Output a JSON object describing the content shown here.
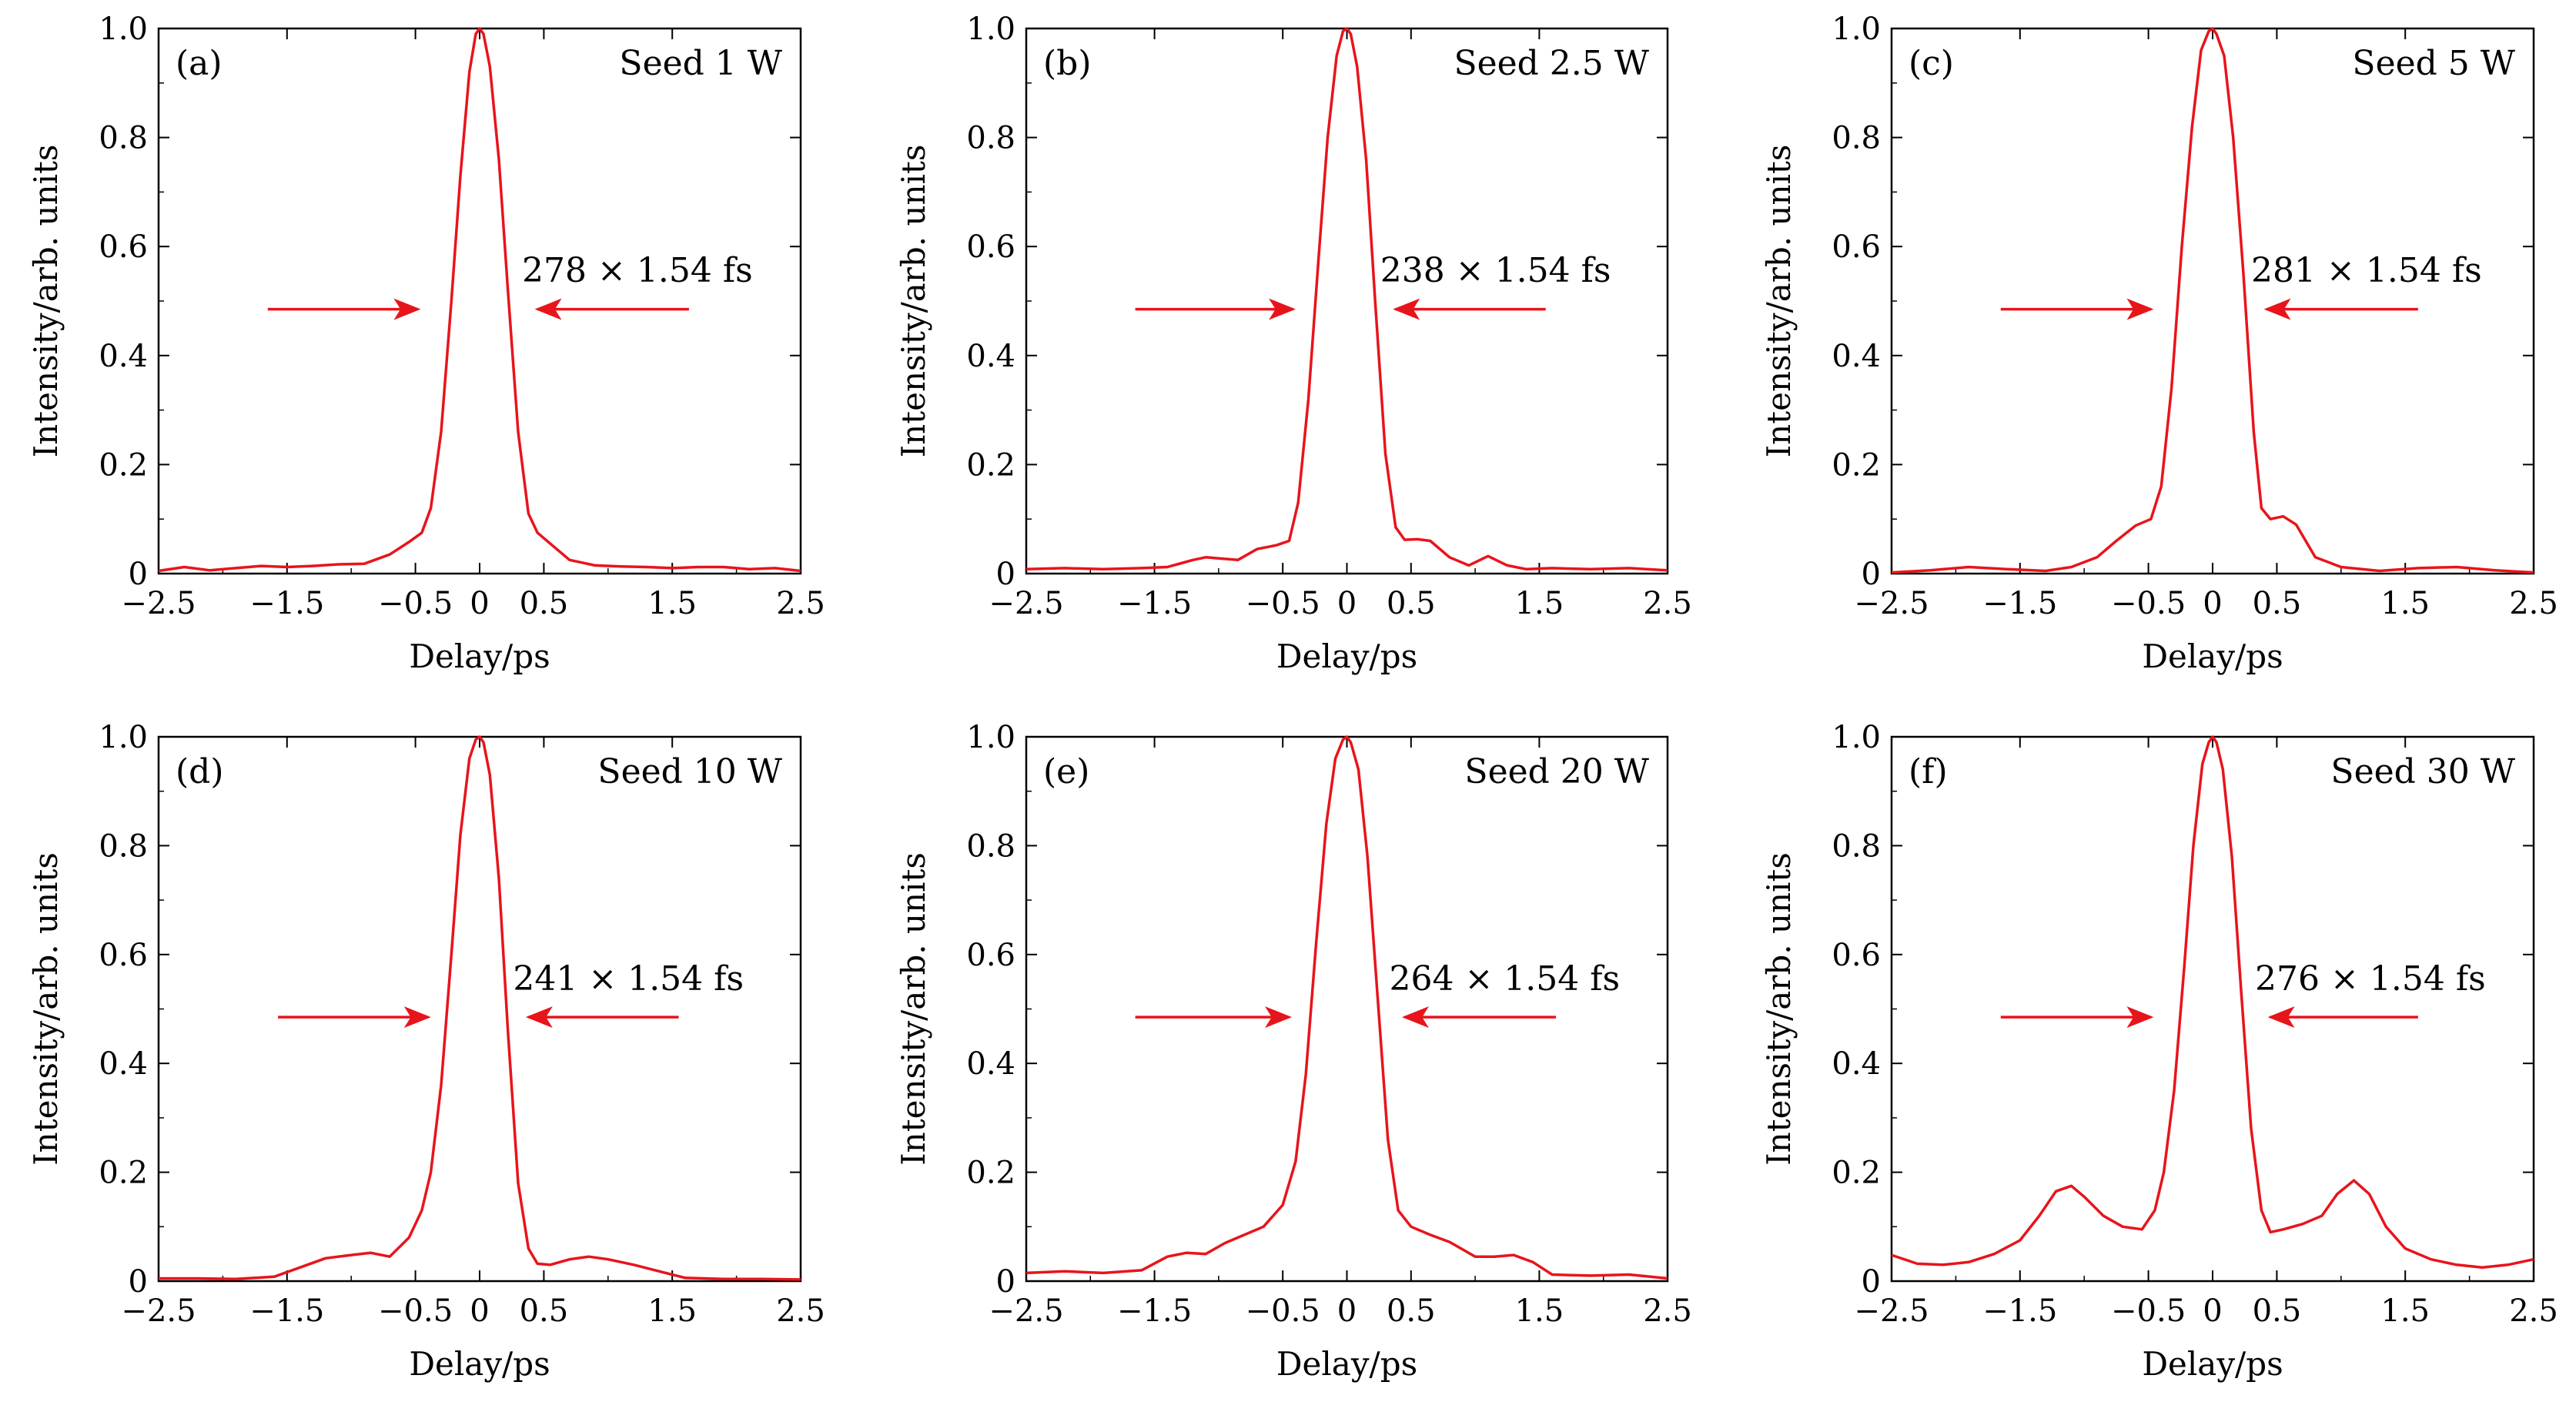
{
  "figure": {
    "background": "#ffffff",
    "curve_color": "#e8141b",
    "arrow_color": "#e8141b",
    "axis_color": "#000000"
  },
  "chart_data": [
    {
      "type": "line",
      "panel": "(a)",
      "legend": "Seed 1 W",
      "annotation": "278 × 1.54 fs",
      "xlabel": "Delay/ps",
      "ylabel": "Intensity/arb. units",
      "xlim": [
        -2.5,
        2.5
      ],
      "ylim": [
        0,
        1.0
      ],
      "xticks": [
        -2.5,
        -1.5,
        -0.5,
        0,
        0.5,
        1.5,
        2.5
      ],
      "xtick_labels": [
        "−2.5",
        "−1.5",
        "−0.5",
        "0",
        "0.5",
        "1.5",
        "2.5"
      ],
      "yticks": [
        0,
        0.2,
        0.4,
        0.6,
        0.8,
        1.0
      ],
      "ytick_labels": [
        "0",
        "0.2",
        "0.4",
        "0.6",
        "0.8",
        "1.0"
      ],
      "arrows": [
        {
          "from": -1.65,
          "to": -0.48,
          "y": 0.485
        },
        {
          "from": 1.63,
          "to": 0.45,
          "y": 0.485
        }
      ],
      "x": [
        -2.5,
        -2.3,
        -2.1,
        -1.9,
        -1.7,
        -1.5,
        -1.3,
        -1.1,
        -0.9,
        -0.7,
        -0.55,
        -0.45,
        -0.38,
        -0.3,
        -0.22,
        -0.15,
        -0.08,
        -0.03,
        0,
        0.03,
        0.08,
        0.15,
        0.22,
        0.3,
        0.38,
        0.45,
        0.55,
        0.7,
        0.9,
        1.1,
        1.3,
        1.5,
        1.7,
        1.9,
        2.1,
        2.3,
        2.5
      ],
      "values": [
        0.005,
        0.012,
        0.006,
        0.01,
        0.014,
        0.012,
        0.014,
        0.017,
        0.018,
        0.035,
        0.058,
        0.075,
        0.12,
        0.26,
        0.5,
        0.73,
        0.92,
        0.99,
        1.0,
        0.99,
        0.93,
        0.76,
        0.52,
        0.26,
        0.11,
        0.075,
        0.055,
        0.025,
        0.015,
        0.013,
        0.012,
        0.01,
        0.012,
        0.012,
        0.008,
        0.01,
        0.005
      ]
    },
    {
      "type": "line",
      "panel": "(b)",
      "legend": "Seed 2.5 W",
      "annotation": "238 × 1.54 fs",
      "xlabel": "Delay/ps",
      "ylabel": "Intensity/arb. units",
      "xlim": [
        -2.5,
        2.5
      ],
      "ylim": [
        0,
        1.0
      ],
      "xticks": [
        -2.5,
        -1.5,
        -0.5,
        0,
        0.5,
        1.5,
        2.5
      ],
      "xtick_labels": [
        "−2.5",
        "−1.5",
        "−0.5",
        "0",
        "0.5",
        "1.5",
        "2.5"
      ],
      "yticks": [
        0,
        0.2,
        0.4,
        0.6,
        0.8,
        1.0
      ],
      "ytick_labels": [
        "0",
        "0.2",
        "0.4",
        "0.6",
        "0.8",
        "1.0"
      ],
      "arrows": [
        {
          "from": -1.65,
          "to": -0.42,
          "y": 0.485
        },
        {
          "from": 1.55,
          "to": 0.38,
          "y": 0.485
        }
      ],
      "x": [
        -2.5,
        -2.2,
        -1.9,
        -1.6,
        -1.4,
        -1.2,
        -1.1,
        -1.0,
        -0.85,
        -0.7,
        -0.55,
        -0.45,
        -0.38,
        -0.3,
        -0.22,
        -0.15,
        -0.08,
        -0.03,
        0,
        0.03,
        0.08,
        0.15,
        0.22,
        0.3,
        0.38,
        0.45,
        0.55,
        0.65,
        0.8,
        0.95,
        1.1,
        1.25,
        1.4,
        1.6,
        1.9,
        2.2,
        2.5
      ],
      "values": [
        0.008,
        0.01,
        0.008,
        0.01,
        0.012,
        0.025,
        0.03,
        0.028,
        0.025,
        0.045,
        0.052,
        0.06,
        0.13,
        0.32,
        0.58,
        0.8,
        0.95,
        0.995,
        1.0,
        0.99,
        0.93,
        0.76,
        0.5,
        0.22,
        0.085,
        0.062,
        0.063,
        0.06,
        0.03,
        0.015,
        0.032,
        0.015,
        0.008,
        0.01,
        0.008,
        0.01,
        0.006
      ]
    },
    {
      "type": "line",
      "panel": "(c)",
      "legend": "Seed 5 W",
      "annotation": "281 × 1.54 fs",
      "xlabel": "Delay/ps",
      "ylabel": "Intensity/arb. units",
      "xlim": [
        -2.5,
        2.5
      ],
      "ylim": [
        0,
        1.0
      ],
      "xticks": [
        -2.5,
        -1.5,
        -0.5,
        0,
        0.5,
        1.5,
        2.5
      ],
      "xtick_labels": [
        "−2.5",
        "−1.5",
        "−0.5",
        "0",
        "0.5",
        "1.5",
        "2.5"
      ],
      "yticks": [
        0,
        0.2,
        0.4,
        0.6,
        0.8,
        1.0
      ],
      "ytick_labels": [
        "0",
        "0.2",
        "0.4",
        "0.6",
        "0.8",
        "1.0"
      ],
      "arrows": [
        {
          "from": -1.65,
          "to": -0.48,
          "y": 0.485
        },
        {
          "from": 1.6,
          "to": 0.42,
          "y": 0.485
        }
      ],
      "x": [
        -2.5,
        -2.2,
        -1.9,
        -1.6,
        -1.3,
        -1.1,
        -0.9,
        -0.75,
        -0.6,
        -0.48,
        -0.4,
        -0.32,
        -0.24,
        -0.16,
        -0.09,
        -0.03,
        0,
        0.03,
        0.09,
        0.16,
        0.24,
        0.32,
        0.38,
        0.45,
        0.55,
        0.65,
        0.8,
        1.0,
        1.3,
        1.6,
        1.9,
        2.2,
        2.5
      ],
      "values": [
        0.002,
        0.006,
        0.012,
        0.008,
        0.005,
        0.012,
        0.03,
        0.06,
        0.088,
        0.1,
        0.16,
        0.34,
        0.6,
        0.82,
        0.96,
        0.995,
        1.0,
        0.99,
        0.95,
        0.8,
        0.55,
        0.26,
        0.12,
        0.1,
        0.105,
        0.09,
        0.03,
        0.012,
        0.005,
        0.01,
        0.012,
        0.006,
        0.002
      ]
    },
    {
      "type": "line",
      "panel": "(d)",
      "legend": "Seed 10 W",
      "annotation": "241 × 1.54 fs",
      "xlabel": "Delay/ps",
      "ylabel": "Intensity/arb. units",
      "xlim": [
        -2.5,
        2.5
      ],
      "ylim": [
        0,
        1.0
      ],
      "xticks": [
        -2.5,
        -1.5,
        -0.5,
        0,
        0.5,
        1.5,
        2.5
      ],
      "xtick_labels": [
        "−2.5",
        "−1.5",
        "−0.5",
        "0",
        "0.5",
        "1.5",
        "2.5"
      ],
      "yticks": [
        0,
        0.2,
        0.4,
        0.6,
        0.8,
        1.0
      ],
      "ytick_labels": [
        "0",
        "0.2",
        "0.4",
        "0.6",
        "0.8",
        "1.0"
      ],
      "arrows": [
        {
          "from": -1.57,
          "to": -0.4,
          "y": 0.485
        },
        {
          "from": 1.55,
          "to": 0.38,
          "y": 0.485
        }
      ],
      "x": [
        -2.5,
        -2.2,
        -1.9,
        -1.6,
        -1.4,
        -1.2,
        -1.0,
        -0.85,
        -0.7,
        -0.55,
        -0.45,
        -0.38,
        -0.3,
        -0.22,
        -0.15,
        -0.08,
        -0.03,
        0,
        0.03,
        0.08,
        0.15,
        0.22,
        0.3,
        0.38,
        0.45,
        0.55,
        0.7,
        0.85,
        1.0,
        1.2,
        1.4,
        1.6,
        1.9,
        2.2,
        2.5
      ],
      "values": [
        0.005,
        0.005,
        0.004,
        0.008,
        0.025,
        0.042,
        0.048,
        0.052,
        0.045,
        0.08,
        0.13,
        0.2,
        0.36,
        0.6,
        0.82,
        0.96,
        0.995,
        1.0,
        0.99,
        0.93,
        0.74,
        0.46,
        0.18,
        0.06,
        0.032,
        0.03,
        0.04,
        0.045,
        0.04,
        0.03,
        0.018,
        0.006,
        0.004,
        0.004,
        0.003
      ]
    },
    {
      "type": "line",
      "panel": "(e)",
      "legend": "Seed 20 W",
      "annotation": "264 × 1.54 fs",
      "xlabel": "Delay/ps",
      "ylabel": "Intensity/arb. units",
      "xlim": [
        -2.5,
        2.5
      ],
      "ylim": [
        0,
        1.0
      ],
      "xticks": [
        -2.5,
        -1.5,
        -0.5,
        0,
        0.5,
        1.5,
        2.5
      ],
      "xtick_labels": [
        "−2.5",
        "−1.5",
        "−0.5",
        "0",
        "0.5",
        "1.5",
        "2.5"
      ],
      "yticks": [
        0,
        0.2,
        0.4,
        0.6,
        0.8,
        1.0
      ],
      "ytick_labels": [
        "0",
        "0.2",
        "0.4",
        "0.6",
        "0.8",
        "1.0"
      ],
      "arrows": [
        {
          "from": -1.65,
          "to": -0.45,
          "y": 0.485
        },
        {
          "from": 1.63,
          "to": 0.45,
          "y": 0.485
        }
      ],
      "x": [
        -2.5,
        -2.2,
        -1.9,
        -1.6,
        -1.4,
        -1.25,
        -1.1,
        -0.95,
        -0.8,
        -0.65,
        -0.5,
        -0.4,
        -0.32,
        -0.24,
        -0.16,
        -0.09,
        -0.03,
        0,
        0.03,
        0.09,
        0.16,
        0.24,
        0.32,
        0.4,
        0.5,
        0.65,
        0.8,
        1.0,
        1.15,
        1.3,
        1.45,
        1.6,
        1.9,
        2.2,
        2.5
      ],
      "values": [
        0.015,
        0.018,
        0.015,
        0.02,
        0.045,
        0.052,
        0.05,
        0.07,
        0.085,
        0.1,
        0.14,
        0.22,
        0.38,
        0.62,
        0.84,
        0.96,
        0.995,
        1.0,
        0.99,
        0.94,
        0.78,
        0.52,
        0.26,
        0.13,
        0.1,
        0.085,
        0.072,
        0.045,
        0.045,
        0.048,
        0.035,
        0.012,
        0.01,
        0.012,
        0.005
      ]
    },
    {
      "type": "line",
      "panel": "(f)",
      "legend": "Seed 30 W",
      "annotation": "276 × 1.54 fs",
      "xlabel": "Delay/ps",
      "ylabel": "Intensity/arb. units",
      "xlim": [
        -2.5,
        2.5
      ],
      "ylim": [
        0,
        1.0
      ],
      "xticks": [
        -2.5,
        -1.5,
        -0.5,
        0,
        0.5,
        1.5,
        2.5
      ],
      "xtick_labels": [
        "−2.5",
        "−1.5",
        "−0.5",
        "0",
        "0.5",
        "1.5",
        "2.5"
      ],
      "yticks": [
        0,
        0.2,
        0.4,
        0.6,
        0.8,
        1.0
      ],
      "ytick_labels": [
        "0",
        "0.2",
        "0.4",
        "0.6",
        "0.8",
        "1.0"
      ],
      "arrows": [
        {
          "from": -1.65,
          "to": -0.48,
          "y": 0.485
        },
        {
          "from": 1.6,
          "to": 0.45,
          "y": 0.485
        }
      ],
      "x": [
        -2.5,
        -2.3,
        -2.1,
        -1.9,
        -1.7,
        -1.5,
        -1.35,
        -1.22,
        -1.1,
        -1.0,
        -0.85,
        -0.7,
        -0.55,
        -0.45,
        -0.38,
        -0.3,
        -0.22,
        -0.15,
        -0.08,
        -0.03,
        0,
        0.03,
        0.08,
        0.15,
        0.22,
        0.3,
        0.38,
        0.45,
        0.55,
        0.7,
        0.85,
        0.97,
        1.1,
        1.22,
        1.35,
        1.5,
        1.7,
        1.9,
        2.1,
        2.3,
        2.5
      ],
      "values": [
        0.048,
        0.032,
        0.03,
        0.035,
        0.05,
        0.075,
        0.12,
        0.165,
        0.175,
        0.155,
        0.12,
        0.1,
        0.095,
        0.13,
        0.2,
        0.35,
        0.58,
        0.8,
        0.95,
        0.99,
        1.0,
        0.99,
        0.94,
        0.78,
        0.54,
        0.28,
        0.13,
        0.09,
        0.095,
        0.105,
        0.12,
        0.16,
        0.185,
        0.16,
        0.1,
        0.06,
        0.04,
        0.03,
        0.025,
        0.03,
        0.04
      ]
    }
  ]
}
